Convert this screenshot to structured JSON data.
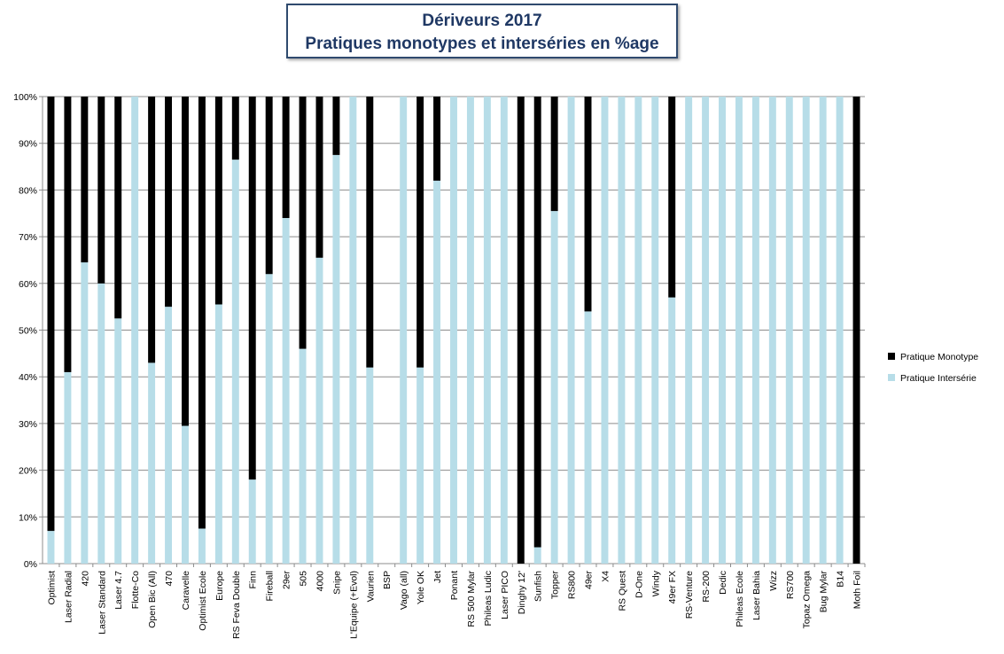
{
  "chart_data": {
    "type": "bar",
    "stacked": true,
    "title": "Dériveurs 2017",
    "subtitle": "Pratiques monotypes et interséries en %age",
    "ylim": [
      0,
      100
    ],
    "y_ticks": [
      "0%",
      "10%",
      "20%",
      "30%",
      "40%",
      "50%",
      "60%",
      "70%",
      "80%",
      "90%",
      "100%"
    ],
    "grid": true,
    "legend_position": "right",
    "categories": [
      "Optimist",
      "Laser Radial",
      "420",
      "Laser Standard",
      "Laser 4.7",
      "Flotte-Co",
      "Open Bic (All)",
      "470",
      "Caravelle",
      "Optimist Ecole",
      "Europe",
      "RS Feva Double",
      "Finn",
      "Fireball",
      "29er",
      "505",
      "4000",
      "Snipe",
      "L'Equipe (+Evol)",
      "Vaurien",
      "BSP",
      "Vago (all)",
      "Yole OK",
      "Jet",
      "Ponant",
      "RS 500 Mylar",
      "Phileas Ludic",
      "Laser PICO",
      "Dinghy 12'",
      "Sunfish",
      "Topper",
      "RS800",
      "49er",
      "X4",
      "RS Quest",
      "D-One",
      "Windy",
      "49er FX",
      "RS-Venture",
      "RS-200",
      "Dedic",
      "Phileas Ecole",
      "Laser Bahia",
      "Wizz",
      "RS700",
      "Topaz Omega",
      "Bug Mylar",
      "B14",
      "Moth Foil"
    ],
    "series": [
      {
        "name": "Pratique Intersérie",
        "color": "#b7dde8",
        "values": [
          7,
          41,
          64.5,
          60,
          52.5,
          100,
          43,
          55,
          29.5,
          7.5,
          55.5,
          86.5,
          18,
          62,
          74,
          46,
          65.5,
          87.5,
          100,
          42,
          0,
          100,
          42,
          82,
          100,
          100,
          100,
          100,
          0,
          3.5,
          75.5,
          100,
          54,
          100,
          100,
          100,
          100,
          57,
          100,
          100,
          100,
          100,
          100,
          100,
          100,
          100,
          100,
          100,
          0
        ]
      },
      {
        "name": "Pratique Monotype",
        "color": "#000000",
        "values": [
          93,
          59,
          35.5,
          40,
          47.5,
          0,
          57,
          45,
          70.5,
          92.5,
          44.5,
          13.5,
          82,
          38,
          26,
          54,
          34.5,
          12.5,
          0,
          58,
          0,
          0,
          58,
          18,
          0,
          0,
          0,
          0,
          100,
          96.5,
          24.5,
          0,
          46,
          0,
          0,
          0,
          0,
          43,
          0,
          0,
          0,
          0,
          0,
          0,
          0,
          0,
          0,
          0,
          100
        ]
      }
    ],
    "legend": [
      {
        "label": "Pratique Monotype",
        "color": "#000000"
      },
      {
        "label": "Pratique Intersérie",
        "color": "#b7dde8"
      }
    ]
  }
}
